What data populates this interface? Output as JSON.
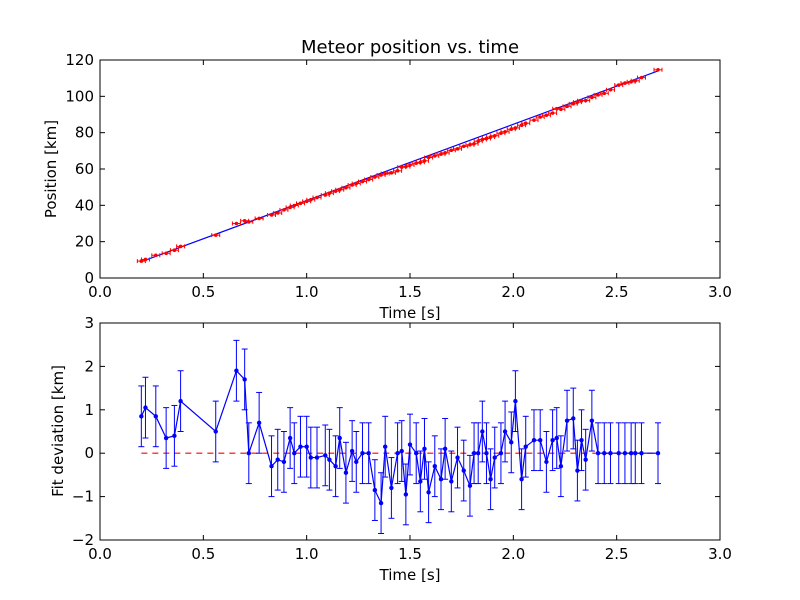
{
  "chart_data": [
    {
      "type": "scatter",
      "title": "Meteor position vs. time",
      "xlabel": "Time [s]",
      "ylabel": "Position [km]",
      "xlim": [
        0.0,
        3.0
      ],
      "ylim": [
        0,
        120
      ],
      "xticks": [
        "0.0",
        "0.5",
        "1.0",
        "1.5",
        "2.0",
        "2.5",
        "3.0"
      ],
      "yticks": [
        "0",
        "20",
        "40",
        "60",
        "80",
        "100",
        "120"
      ],
      "grid": false,
      "colors": {
        "points": "#ff0000",
        "fit": "#0000ff"
      },
      "fit_line": {
        "x": [
          0.2,
          2.7
        ],
        "y": [
          9.0,
          114.0
        ]
      },
      "series": [
        {
          "x": [
            0.2,
            0.22,
            0.27,
            0.32,
            0.36,
            0.39,
            0.56,
            0.66,
            0.7,
            0.72,
            0.77,
            0.83,
            0.86,
            0.89,
            0.92,
            0.94,
            0.97,
            1.0,
            1.02,
            1.05,
            1.09,
            1.11,
            1.14,
            1.16,
            1.19,
            1.22,
            1.24,
            1.27,
            1.3,
            1.33,
            1.36,
            1.38,
            1.41,
            1.44,
            1.46,
            1.48,
            1.5,
            1.53,
            1.55,
            1.57,
            1.59,
            1.62,
            1.65,
            1.67,
            1.7,
            1.73,
            1.76,
            1.79,
            1.81,
            1.83,
            1.85,
            1.87,
            1.89,
            1.91,
            1.94,
            1.96,
            1.99,
            2.01,
            2.04,
            2.06,
            2.1,
            2.13,
            2.16,
            2.19,
            2.21,
            2.23,
            2.26,
            2.29,
            2.31,
            2.33,
            2.35,
            2.38,
            2.41,
            2.44,
            2.47,
            2.51,
            2.54,
            2.57,
            2.59,
            2.62,
            2.7
          ],
          "y": [
            9.3,
            10.2,
            12.5,
            13.6,
            15.3,
            17.4,
            23.6,
            30.0,
            31.5,
            30.9,
            32.8,
            34.7,
            35.8,
            37.5,
            38.9,
            39.9,
            41.1,
            42.2,
            43.1,
            44.3,
            45.7,
            46.7,
            47.8,
            48.6,
            49.7,
            51.2,
            52.0,
            53.1,
            54.2,
            55.6,
            56.7,
            57.5,
            57.9,
            59.0,
            61.0,
            61.3,
            62.2,
            63.2,
            63.7,
            64.5,
            66.3,
            67.2,
            68.2,
            68.9,
            70.3,
            71.1,
            72.5,
            73.3,
            73.9,
            75.3,
            76.2,
            76.8,
            77.6,
            78.3,
            79.7,
            80.5,
            81.9,
            82.6,
            84.1,
            85.2,
            86.9,
            88.6,
            89.6,
            90.8,
            93.2,
            92.9,
            94.5,
            95.9,
            96.8,
            97.6,
            97.7,
            99.4,
            100.8,
            101.7,
            103.6,
            106.2,
            107.3,
            108.0,
            108.6,
            110.3,
            114.6
          ]
        }
      ]
    },
    {
      "type": "line",
      "xlabel": "Time [s]",
      "ylabel": "Fit deviation [km]",
      "xlim": [
        0.0,
        3.0
      ],
      "ylim": [
        -2,
        3
      ],
      "xticks": [
        "0.0",
        "0.5",
        "1.0",
        "1.5",
        "2.0",
        "2.5",
        "3.0"
      ],
      "yticks": [
        "−2",
        "−1",
        "0",
        "1",
        "2",
        "3"
      ],
      "grid": false,
      "colors": {
        "series": "#0000ff",
        "zero": "#ff0000"
      },
      "zero_line": {
        "x": [
          0.2,
          2.7
        ],
        "y": [
          0,
          0
        ]
      },
      "error": 0.7,
      "series": [
        {
          "x": [
            0.2,
            0.22,
            0.27,
            0.32,
            0.36,
            0.39,
            0.56,
            0.66,
            0.7,
            0.72,
            0.77,
            0.83,
            0.86,
            0.89,
            0.92,
            0.94,
            0.97,
            1.0,
            1.02,
            1.05,
            1.09,
            1.11,
            1.14,
            1.16,
            1.19,
            1.22,
            1.24,
            1.27,
            1.3,
            1.33,
            1.36,
            1.38,
            1.41,
            1.44,
            1.46,
            1.48,
            1.5,
            1.53,
            1.55,
            1.57,
            1.59,
            1.62,
            1.65,
            1.67,
            1.7,
            1.73,
            1.76,
            1.79,
            1.81,
            1.83,
            1.85,
            1.87,
            1.89,
            1.91,
            1.94,
            1.96,
            1.99,
            2.01,
            2.04,
            2.06,
            2.1,
            2.13,
            2.16,
            2.19,
            2.21,
            2.23,
            2.26,
            2.29,
            2.31,
            2.33,
            2.35,
            2.38,
            2.41,
            2.44,
            2.47,
            2.51,
            2.54,
            2.57,
            2.59,
            2.62,
            2.7
          ],
          "y": [
            0.85,
            1.05,
            0.85,
            0.35,
            0.4,
            1.2,
            0.5,
            1.9,
            1.7,
            0.0,
            0.7,
            -0.3,
            -0.15,
            -0.2,
            0.35,
            0.0,
            0.15,
            0.15,
            -0.1,
            -0.1,
            -0.05,
            -0.15,
            -0.3,
            0.35,
            -0.45,
            0.05,
            -0.2,
            0.0,
            0.0,
            -0.85,
            -1.15,
            0.15,
            -0.8,
            0.0,
            0.05,
            -0.95,
            0.2,
            0.0,
            -0.65,
            0.1,
            -0.9,
            -0.3,
            -0.6,
            0.1,
            -0.65,
            -0.1,
            -0.4,
            -0.75,
            0.0,
            0.0,
            0.5,
            0.0,
            -0.6,
            -0.1,
            0.0,
            0.5,
            0.25,
            1.2,
            -0.6,
            0.15,
            0.3,
            0.3,
            -0.2,
            0.3,
            0.35,
            -0.3,
            0.75,
            0.8,
            -0.4,
            0.3,
            -0.15,
            0.75,
            0.0,
            0.0,
            0.0,
            0.0,
            0.0,
            0.0,
            0.0,
            0.0,
            0.0
          ]
        }
      ]
    }
  ]
}
